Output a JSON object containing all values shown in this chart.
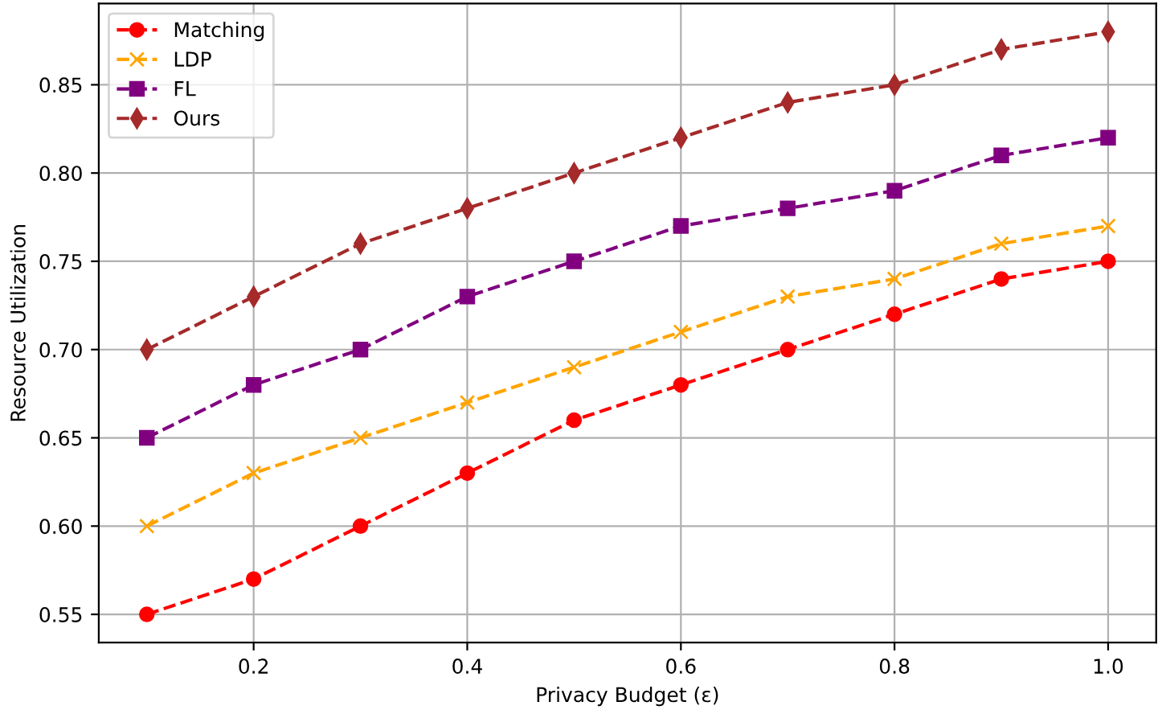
{
  "chart_data": {
    "type": "line",
    "xlabel": "Privacy Budget (ε)",
    "ylabel": "Resource Utilization",
    "x": [
      0.1,
      0.2,
      0.3,
      0.4,
      0.5,
      0.6,
      0.7,
      0.8,
      0.9,
      1.0
    ],
    "series": [
      {
        "name": "Matching",
        "color": "#ff0000",
        "marker": "circle",
        "values": [
          0.55,
          0.57,
          0.6,
          0.63,
          0.66,
          0.68,
          0.7,
          0.72,
          0.74,
          0.75
        ]
      },
      {
        "name": "LDP",
        "color": "#ffa500",
        "marker": "cross",
        "values": [
          0.6,
          0.63,
          0.65,
          0.67,
          0.69,
          0.71,
          0.73,
          0.74,
          0.76,
          0.77
        ]
      },
      {
        "name": "FL",
        "color": "#800080",
        "marker": "square",
        "values": [
          0.65,
          0.68,
          0.7,
          0.73,
          0.75,
          0.77,
          0.78,
          0.79,
          0.81,
          0.82
        ]
      },
      {
        "name": "Ours",
        "color": "#a52a2a",
        "marker": "diamond",
        "values": [
          0.7,
          0.73,
          0.76,
          0.78,
          0.8,
          0.82,
          0.84,
          0.85,
          0.87,
          0.88
        ]
      }
    ],
    "line_style": "dashed",
    "grid": true,
    "legend": "top left",
    "xlim": [
      0.055,
      1.045
    ],
    "xticks": [
      0.2,
      0.4,
      0.6,
      0.8,
      {
        "value": 1.0,
        "label": "1.0"
      }
    ],
    "ylim": [
      0.534,
      0.896
    ],
    "yticks": [
      0.55,
      {
        "value": 0.6,
        "label": "0.60"
      },
      0.65,
      {
        "value": 0.7,
        "label": "0.70"
      },
      0.75,
      {
        "value": 0.8,
        "label": "0.80"
      },
      0.85
    ]
  }
}
